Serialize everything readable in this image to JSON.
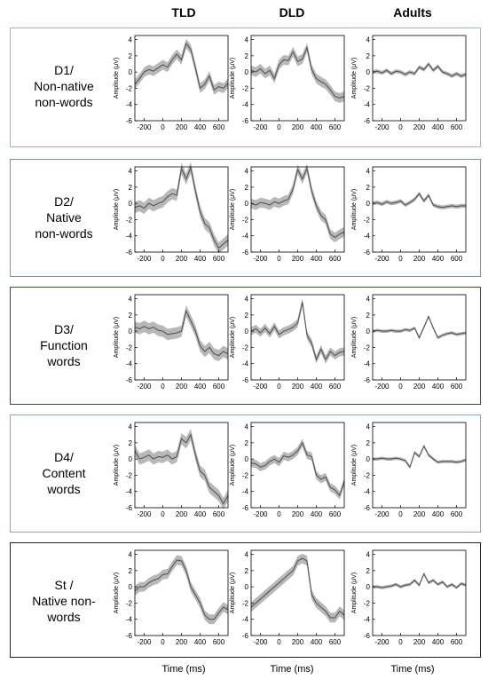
{
  "columns": [
    "TLD",
    "DLD",
    "Adults"
  ],
  "x_axis_title": "Time (ms)",
  "y_axis_title": "Amplitude (μV)",
  "rows": [
    {
      "label_lines": [
        "D1/",
        "Non-native",
        "non-words"
      ],
      "border_color": "#5fd3d3"
    },
    {
      "label_lines": [
        "D2/",
        "Native",
        "non-words"
      ],
      "border_color": "#3bb88f"
    },
    {
      "label_lines": [
        "D3/",
        "Function",
        "words"
      ],
      "border_color": "#2e3d8f"
    },
    {
      "label_lines": [
        "D4/",
        "Content",
        "words"
      ],
      "border_color": "#d27fd0"
    },
    {
      "label_lines": [
        "St /",
        "Native non-",
        "words"
      ],
      "border_color": "#222222"
    }
  ],
  "chart_data": {
    "type": "line",
    "layout": "5 rows x 3 columns grid of ERP waveforms",
    "xlabel": "Time (ms)",
    "ylabel": "Amplitude (μV)",
    "xlim": [
      -300,
      700
    ],
    "ylim": [
      -6,
      4.5
    ],
    "xticks": [
      -200,
      0,
      200,
      400,
      600
    ],
    "yticks": [
      4,
      2,
      0,
      -2,
      -4,
      -6
    ],
    "band_color": "#b8b8b8",
    "line_color": "#555555",
    "panels": [
      {
        "row": 0,
        "col": 0,
        "x": [
          -300,
          -250,
          -200,
          -150,
          -100,
          -50,
          0,
          50,
          100,
          150,
          200,
          250,
          300,
          350,
          400,
          450,
          500,
          550,
          600,
          650,
          700
        ],
        "y": [
          -1.5,
          -0.8,
          0.0,
          0.3,
          0.1,
          0.5,
          0.9,
          0.6,
          1.5,
          2.2,
          1.5,
          3.5,
          2.8,
          0.5,
          -2.0,
          -1.5,
          -0.5,
          -2.2,
          -1.8,
          -2.0,
          -1.4
        ],
        "band": 0.6
      },
      {
        "row": 0,
        "col": 1,
        "x": [
          -300,
          -250,
          -200,
          -150,
          -100,
          -50,
          0,
          50,
          100,
          150,
          200,
          250,
          300,
          350,
          400,
          450,
          500,
          550,
          600,
          650,
          700
        ],
        "y": [
          0.2,
          0.0,
          0.4,
          -0.2,
          0.2,
          -0.8,
          0.9,
          1.5,
          1.4,
          2.5,
          1.3,
          1.6,
          3.0,
          0.3,
          -0.8,
          -1.2,
          -1.5,
          -2.2,
          -3.0,
          -3.2,
          -3.0
        ],
        "band": 0.6
      },
      {
        "row": 0,
        "col": 2,
        "x": [
          -300,
          -250,
          -200,
          -150,
          -100,
          -50,
          0,
          50,
          100,
          150,
          200,
          250,
          300,
          350,
          400,
          450,
          500,
          550,
          600,
          650,
          700
        ],
        "y": [
          0.0,
          0.1,
          -0.1,
          0.2,
          -0.2,
          0.1,
          0.0,
          -0.3,
          0.0,
          -0.2,
          0.6,
          0.3,
          1.0,
          0.2,
          0.7,
          0.0,
          -0.2,
          -0.5,
          -0.2,
          -0.5,
          -0.3
        ],
        "band": 0.25
      },
      {
        "row": 1,
        "col": 0,
        "x": [
          -300,
          -250,
          -200,
          -150,
          -100,
          -50,
          0,
          50,
          100,
          150,
          200,
          250,
          300,
          350,
          400,
          450,
          500,
          550,
          600,
          650,
          700
        ],
        "y": [
          -0.5,
          -0.3,
          -0.6,
          0.0,
          -0.3,
          0.0,
          0.2,
          0.8,
          1.2,
          1.0,
          4.3,
          3.0,
          4.4,
          1.5,
          -1.0,
          -2.5,
          -3.0,
          -4.5,
          -5.5,
          -5.0,
          -4.5
        ],
        "band": 0.7
      },
      {
        "row": 1,
        "col": 1,
        "x": [
          -300,
          -250,
          -200,
          -150,
          -100,
          -50,
          0,
          50,
          100,
          150,
          200,
          250,
          300,
          350,
          400,
          450,
          500,
          550,
          600,
          650,
          700
        ],
        "y": [
          0.0,
          -0.2,
          0.1,
          0.0,
          -0.2,
          0.2,
          0.0,
          0.3,
          0.5,
          1.8,
          4.2,
          3.0,
          4.3,
          1.5,
          -0.3,
          -1.5,
          -2.0,
          -3.8,
          -4.2,
          -3.8,
          -3.5
        ],
        "band": 0.6
      },
      {
        "row": 1,
        "col": 2,
        "x": [
          -300,
          -250,
          -200,
          -150,
          -100,
          -50,
          0,
          50,
          100,
          150,
          200,
          250,
          300,
          350,
          400,
          450,
          500,
          550,
          600,
          650,
          700
        ],
        "y": [
          0.0,
          0.1,
          -0.1,
          0.2,
          0.0,
          0.1,
          0.3,
          -0.2,
          0.1,
          0.5,
          1.2,
          0.3,
          1.0,
          -0.2,
          -0.4,
          -0.5,
          -0.4,
          -0.3,
          -0.4,
          -0.3,
          -0.3
        ],
        "band": 0.25
      },
      {
        "row": 2,
        "col": 0,
        "x": [
          -300,
          -250,
          -200,
          -150,
          -100,
          -50,
          0,
          50,
          100,
          150,
          200,
          250,
          300,
          350,
          400,
          450,
          500,
          550,
          600,
          650,
          700
        ],
        "y": [
          0.5,
          0.3,
          0.6,
          0.3,
          0.5,
          0.1,
          0.0,
          -0.4,
          -0.3,
          -0.2,
          0.0,
          2.5,
          1.3,
          0.0,
          -1.8,
          -2.5,
          -2.0,
          -2.8,
          -3.0,
          -2.5,
          -2.8
        ],
        "band": 0.7
      },
      {
        "row": 2,
        "col": 1,
        "x": [
          -300,
          -250,
          -200,
          -150,
          -100,
          -50,
          0,
          50,
          100,
          150,
          200,
          250,
          300,
          350,
          400,
          450,
          500,
          550,
          600,
          650,
          700
        ],
        "y": [
          0.0,
          0.3,
          -0.2,
          0.4,
          -0.3,
          0.6,
          -0.4,
          0.0,
          0.2,
          0.5,
          1.0,
          3.6,
          -0.5,
          -1.5,
          -3.5,
          -2.2,
          -3.5,
          -2.5,
          -3.0,
          -2.6,
          -2.5
        ],
        "band": 0.5
      },
      {
        "row": 2,
        "col": 2,
        "x": [
          -300,
          -250,
          -200,
          -150,
          -100,
          -50,
          0,
          50,
          100,
          150,
          200,
          250,
          300,
          350,
          400,
          450,
          500,
          550,
          600,
          650,
          700
        ],
        "y": [
          0.0,
          0.1,
          0.0,
          0.0,
          0.1,
          0.0,
          0.0,
          0.2,
          0.1,
          0.4,
          -0.8,
          0.5,
          1.8,
          0.4,
          -0.8,
          -0.5,
          -0.3,
          -0.2,
          -0.4,
          -0.3,
          -0.2
        ],
        "band": 0.2
      },
      {
        "row": 3,
        "col": 0,
        "x": [
          -300,
          -250,
          -200,
          -150,
          -100,
          -50,
          0,
          50,
          100,
          150,
          200,
          250,
          300,
          350,
          400,
          450,
          500,
          550,
          600,
          650,
          700
        ],
        "y": [
          1.0,
          0.0,
          0.2,
          0.5,
          0.0,
          0.3,
          0.2,
          0.5,
          0.0,
          0.3,
          2.5,
          2.0,
          3.0,
          0.5,
          -1.5,
          -2.0,
          -3.5,
          -4.0,
          -4.5,
          -5.5,
          -4.5
        ],
        "band": 0.7
      },
      {
        "row": 3,
        "col": 1,
        "x": [
          -300,
          -250,
          -200,
          -150,
          -100,
          -50,
          0,
          50,
          100,
          150,
          200,
          250,
          300,
          350,
          400,
          450,
          500,
          550,
          600,
          650,
          700
        ],
        "y": [
          -0.5,
          -0.6,
          -1.0,
          -0.8,
          -0.3,
          0.0,
          -0.4,
          0.4,
          0.2,
          0.5,
          1.0,
          2.0,
          0.5,
          0.3,
          -2.0,
          -2.5,
          -2.2,
          -3.5,
          -3.8,
          -4.5,
          -2.8
        ],
        "band": 0.5
      },
      {
        "row": 3,
        "col": 2,
        "x": [
          -300,
          -250,
          -200,
          -150,
          -100,
          -50,
          0,
          50,
          100,
          150,
          200,
          250,
          300,
          350,
          400,
          450,
          500,
          550,
          600,
          650,
          700
        ],
        "y": [
          0.0,
          0.0,
          0.1,
          0.0,
          0.0,
          0.1,
          0.0,
          -0.2,
          -1.0,
          0.8,
          0.3,
          1.6,
          0.5,
          0.0,
          -0.4,
          -0.3,
          -0.3,
          -0.3,
          -0.4,
          -0.3,
          -0.1
        ],
        "band": 0.2
      },
      {
        "row": 4,
        "col": 0,
        "x": [
          -300,
          -250,
          -200,
          -150,
          -100,
          -50,
          0,
          50,
          100,
          150,
          200,
          250,
          300,
          350,
          400,
          450,
          500,
          550,
          600,
          650,
          700
        ],
        "y": [
          -0.5,
          0.0,
          0.0,
          0.5,
          0.8,
          1.0,
          1.5,
          1.6,
          2.5,
          3.3,
          3.2,
          2.0,
          0.0,
          -1.0,
          -2.0,
          -3.5,
          -4.0,
          -4.0,
          -3.2,
          -2.5,
          -2.8
        ],
        "band": 0.6
      },
      {
        "row": 4,
        "col": 1,
        "x": [
          -300,
          -250,
          -200,
          -150,
          -100,
          -50,
          0,
          50,
          100,
          150,
          200,
          250,
          300,
          350,
          400,
          450,
          500,
          550,
          600,
          650,
          700
        ],
        "y": [
          -2.5,
          -2.0,
          -1.5,
          -1.0,
          -0.5,
          0.0,
          0.5,
          1.0,
          1.5,
          2.0,
          3.2,
          3.5,
          3.2,
          -1.0,
          -2.0,
          -2.5,
          -3.0,
          -3.8,
          -3.8,
          -3.0,
          -3.5
        ],
        "band": 0.6
      },
      {
        "row": 4,
        "col": 2,
        "x": [
          -300,
          -250,
          -200,
          -150,
          -100,
          -50,
          0,
          50,
          100,
          150,
          200,
          250,
          300,
          350,
          400,
          450,
          500,
          550,
          600,
          650,
          700
        ],
        "y": [
          0.0,
          0.0,
          -0.1,
          0.0,
          0.1,
          0.3,
          0.0,
          0.2,
          0.3,
          0.8,
          0.2,
          1.6,
          0.5,
          0.8,
          0.3,
          0.6,
          0.0,
          0.3,
          -0.1,
          0.4,
          0.2
        ],
        "band": 0.2
      }
    ]
  }
}
